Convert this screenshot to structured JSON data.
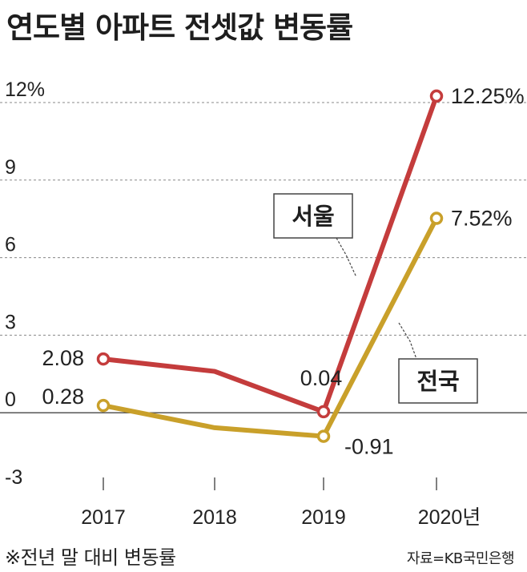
{
  "title": "연도별 아파트 전셋값 변동률",
  "note": "※전년 말 대비 변동률",
  "source": "자료=KB국민은행",
  "colors": {
    "seoul": "#c43c3c",
    "national": "#c9a02a",
    "zero_line": "#555555",
    "grid": "#888888"
  },
  "chart_data": {
    "type": "line",
    "title": "연도별 아파트 전셋값 변동률",
    "xlabel": "",
    "ylabel": "",
    "categories": [
      "2017",
      "2018",
      "2019",
      "2020년"
    ],
    "ylim": [
      -3,
      12
    ],
    "yticks": [
      "12%",
      "9",
      "6",
      "3",
      "0",
      "-3"
    ],
    "grid": "horizontal dashed",
    "series": [
      {
        "name": "서울",
        "values": [
          2.08,
          1.6,
          0.04,
          12.25
        ],
        "labels": [
          "2.08",
          "",
          "0.04",
          "12.25%"
        ]
      },
      {
        "name": "전국",
        "values": [
          0.28,
          -0.58,
          -0.91,
          7.52
        ],
        "labels": [
          "0.28",
          "",
          "-0.91",
          "7.52%"
        ]
      }
    ]
  }
}
